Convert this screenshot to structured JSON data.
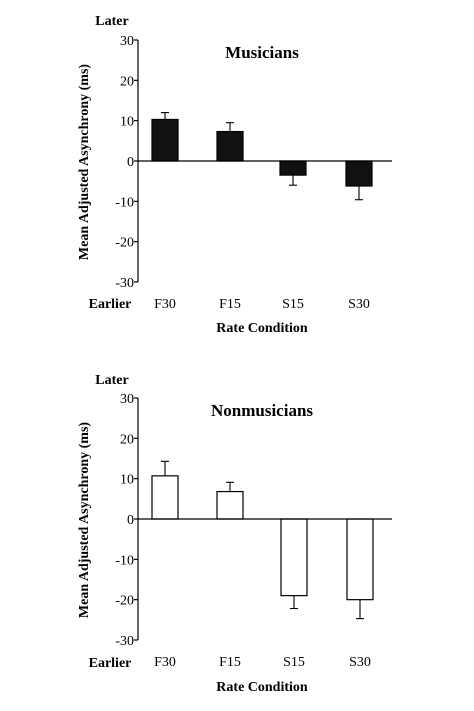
{
  "chart_data": [
    {
      "type": "bar",
      "title": "Musicians",
      "xlabel": "Rate Condition",
      "ylabel": "Mean Adjusted Asynchrony (ms)",
      "categories": [
        "F30",
        "F15",
        "S15",
        "S30"
      ],
      "values": [
        10.3,
        7.3,
        -3.5,
        -6.2
      ],
      "errors": [
        1.7,
        2.2,
        2.5,
        3.4
      ],
      "ylim": [
        -30,
        30
      ],
      "yticks": [
        30,
        20,
        10,
        0,
        -10,
        -20,
        -30
      ],
      "top_label": "Later",
      "bottom_label": "Earlier",
      "bar_color": "#111111",
      "grid": false
    },
    {
      "type": "bar",
      "title": "Nonmusicians",
      "xlabel": "Rate Condition",
      "ylabel": "Mean Adjusted Asynchrony (ms)",
      "categories": [
        "F30",
        "F15",
        "S15",
        "S30"
      ],
      "values": [
        10.7,
        6.8,
        -19.0,
        -20.0
      ],
      "errors": [
        3.6,
        2.3,
        3.2,
        4.7
      ],
      "ylim": [
        -30,
        30
      ],
      "yticks": [
        30,
        20,
        10,
        0,
        -10,
        -20,
        -30
      ],
      "top_label": "Later",
      "bottom_label": "Earlier",
      "bar_color": "#ffffff",
      "grid": false
    }
  ]
}
